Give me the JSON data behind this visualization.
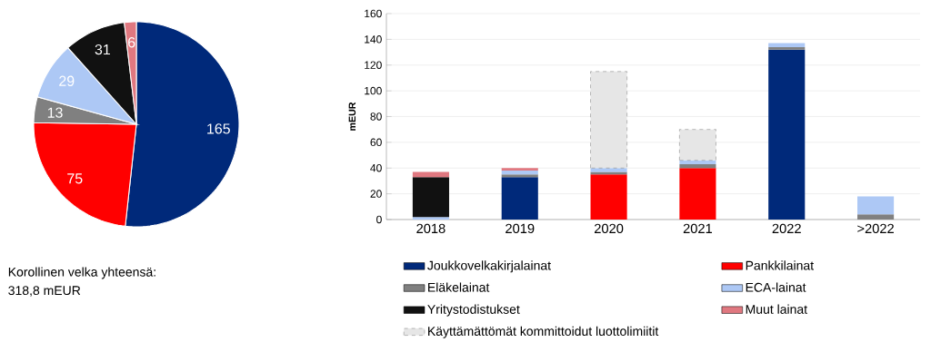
{
  "chart_data": [
    {
      "type": "pie",
      "categories": [
        null,
        null,
        null,
        null,
        null,
        null
      ],
      "values": [
        165,
        75,
        13,
        29,
        31,
        6
      ],
      "colors": [
        "#00297a",
        "#ff0000",
        "#808080",
        "#adc8f5",
        "#111111",
        "#e07880"
      ],
      "data_labels": true,
      "annotations": [
        "Korollinen velka yhteensä:",
        "318,8 mEUR"
      ]
    },
    {
      "type": "bar",
      "stacked": true,
      "categories": [
        "2018",
        "2019",
        "2020",
        "2021",
        "2022",
        ">2022"
      ],
      "ylabel": "mEUR",
      "ylim": [
        0,
        160
      ],
      "yticks": [
        0,
        20,
        40,
        60,
        80,
        100,
        120,
        140,
        160
      ],
      "grid": "y",
      "legend": "bottom",
      "series": [
        {
          "name": "Joukkovelkakirjalainat",
          "color": "#00297a",
          "values": [
            null,
            33,
            null,
            null,
            132,
            null
          ]
        },
        {
          "name": "Pankkilainat",
          "color": "#ff0000",
          "values": [
            null,
            null,
            35,
            40,
            null,
            null
          ]
        },
        {
          "name": "Eläkelainat",
          "color": "#808080",
          "values": [
            null,
            2,
            2,
            3,
            2,
            4
          ]
        },
        {
          "name": "ECA-lainat",
          "color": "#adc8f5",
          "values": [
            2,
            3,
            3,
            3,
            3,
            14
          ]
        },
        {
          "name": "Yritystodistukset",
          "color": "#111111",
          "values": [
            31,
            null,
            null,
            null,
            null,
            null
          ]
        },
        {
          "name": "Muut lainat",
          "color": "#e07880",
          "values": [
            4,
            2,
            null,
            null,
            null,
            null
          ]
        },
        {
          "name": "Käyttämättömät kommittoidut luottolimiitit",
          "color": "#e6e6e6",
          "line_style": "dashed",
          "values": [
            null,
            null,
            75,
            24,
            null,
            null
          ]
        }
      ]
    }
  ]
}
